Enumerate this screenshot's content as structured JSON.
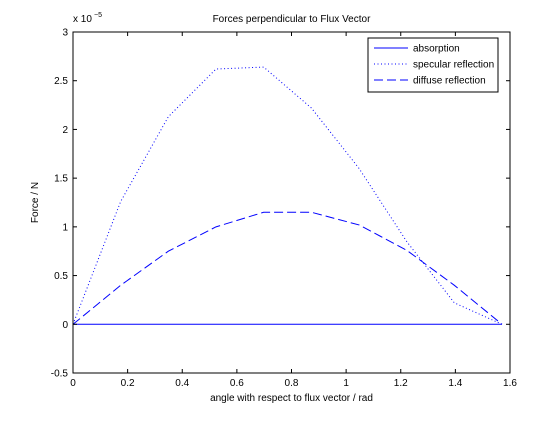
{
  "chart_data": {
    "type": "line",
    "title": "Forces perpendicular to Flux Vector",
    "xlabel": "angle with respect to flux vector / rad",
    "ylabel": "Force / N",
    "xlim": [
      0,
      1.6
    ],
    "ylim": [
      -0.5,
      3
    ],
    "y_scale_exponent": "× 10^-5",
    "y_exponent_base": "x 10",
    "y_exponent_power": "−5",
    "grid": false,
    "legend_position": "top-right",
    "xticks": [
      0,
      0.2,
      0.4,
      0.6,
      0.8,
      1,
      1.2,
      1.4,
      1.6
    ],
    "xtick_labels": [
      "0",
      "0.2",
      "0.4",
      "0.6",
      "0.8",
      "1",
      "1.2",
      "1.4",
      "1.6"
    ],
    "yticks": [
      -0.5,
      0,
      0.5,
      1,
      1.5,
      2,
      2.5,
      3
    ],
    "ytick_labels": [
      "-0.5",
      "0",
      "0.5",
      "1",
      "1.5",
      "2",
      "2.5",
      "3"
    ],
    "x": [
      0,
      0.1745,
      0.349,
      0.5236,
      0.6981,
      0.8727,
      1.0472,
      1.2217,
      1.3963,
      1.5708
    ],
    "series": [
      {
        "name": "absorption",
        "style": "solid",
        "color": "#0000ff",
        "values": [
          0,
          0,
          0,
          0,
          0,
          0,
          0,
          0,
          0,
          0
        ]
      },
      {
        "name": "specular reflection",
        "style": "dotted",
        "color": "#0000ff",
        "values": [
          0,
          1.26,
          2.13,
          2.62,
          2.64,
          2.22,
          1.6,
          0.85,
          0.22,
          0
        ]
      },
      {
        "name": "diffuse reflection",
        "style": "dashed",
        "color": "#0000ff",
        "values": [
          0,
          0.4,
          0.75,
          1.0,
          1.15,
          1.15,
          1.02,
          0.76,
          0.4,
          0
        ]
      }
    ]
  }
}
